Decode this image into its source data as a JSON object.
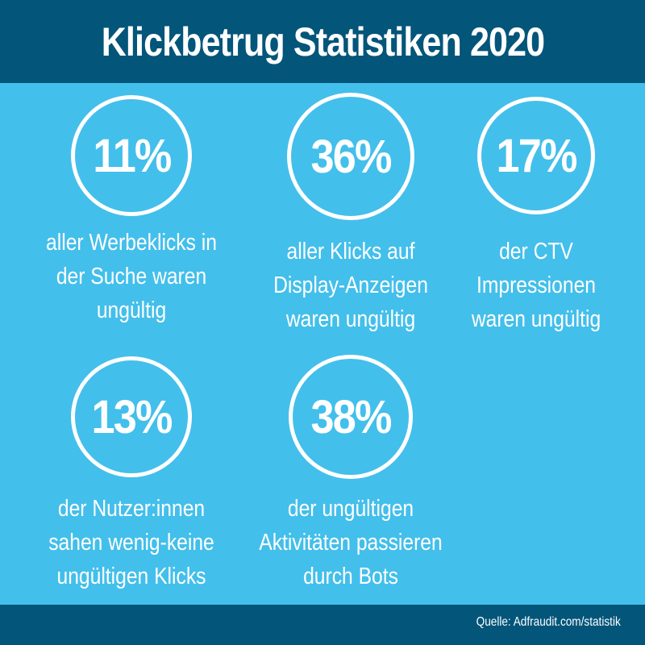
{
  "title": "Klickbetrug Statistiken 2020",
  "stats": [
    {
      "value": "11%",
      "lines": [
        "aller Werbeklicks in",
        "der Suche waren",
        "ungültig"
      ]
    },
    {
      "value": "36%",
      "lines": [
        "aller Klicks auf",
        "Display-Anzeigen",
        "waren ungültig"
      ]
    },
    {
      "value": "17%",
      "lines": [
        "der CTV",
        "Impressionen",
        "waren ungültig"
      ]
    },
    {
      "value": "13%",
      "lines": [
        "der Nutzer:innen",
        "sahen wenig-keine",
        "ungültigen Klicks"
      ]
    },
    {
      "value": "38%",
      "lines": [
        "der ungültigen",
        "Aktivitäten passieren",
        "durch Bots"
      ]
    }
  ],
  "source": "Quelle: Adfraudit.com/statistik",
  "colors": {
    "header": "#03557a",
    "background": "#43bfeb",
    "text": "#ffffff"
  }
}
